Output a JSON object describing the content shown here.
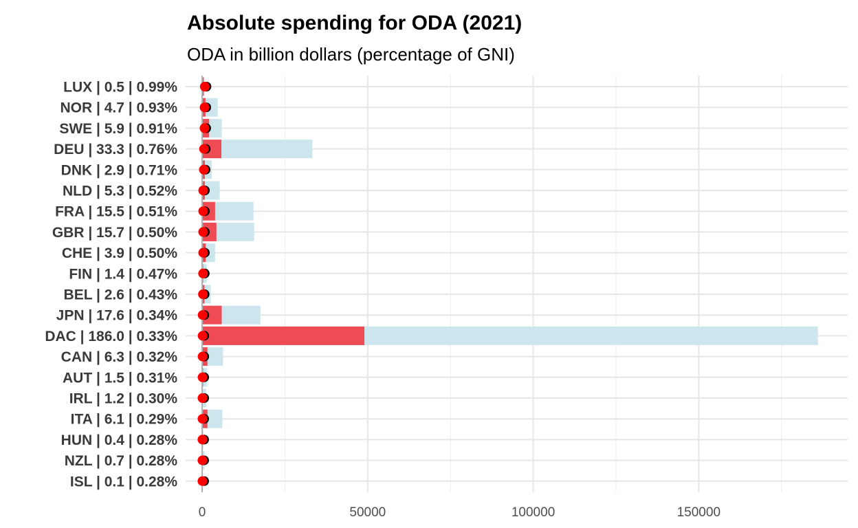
{
  "chart_data": {
    "type": "bar",
    "title": "Absolute spending for ODA (2021)",
    "subtitle": "ODA in billion dollars (percentage of GNI)",
    "xlabel": "",
    "ylabel": "",
    "xlim": [
      -5000,
      195000
    ],
    "x_ticks": [
      0,
      50000,
      100000,
      150000
    ],
    "x_tick_labels": [
      "0",
      "50000",
      "100000",
      "150000"
    ],
    "grid": true,
    "legend": "none",
    "colors": {
      "total_bar": "#cde6ee",
      "highlight_bar": "#ef4b55",
      "point_fill": "#ff0000",
      "point_stroke": "#000000",
      "grid": "#e6e6e6",
      "zero_line": "#b0b0b0"
    },
    "categories": [
      "LUX | 0.5 | 0.99%",
      "NOR | 4.7 | 0.93%",
      "SWE | 5.9 | 0.91%",
      "DEU | 33.3 | 0.76%",
      "DNK | 2.9 | 0.71%",
      "NLD | 5.3 | 0.52%",
      "FRA | 15.5 | 0.51%",
      "GBR | 15.7 | 0.50%",
      "CHE | 3.9 | 0.50%",
      "FIN | 1.4 | 0.47%",
      "BEL | 2.6 | 0.43%",
      "JPN | 17.6 | 0.34%",
      "DAC | 186.0 | 0.33%",
      "CAN | 6.3 | 0.32%",
      "AUT | 1.5 | 0.31%",
      "IRL | 1.2 | 0.30%",
      "ITA | 6.1 | 0.29%",
      "HUN | 0.4 | 0.28%",
      "NZL | 0.7 | 0.28%",
      "ISL | 0.1 | 0.28%"
    ],
    "series": [
      {
        "values": [
          500,
          4700,
          5900,
          33300,
          2900,
          5300,
          15500,
          15700,
          3900,
          1400,
          2600,
          17600,
          186000,
          6300,
          1500,
          1200,
          6100,
          400,
          700,
          100
        ]
      },
      {
        "values": [
          500,
          1000,
          2100,
          5800,
          800,
          800,
          3900,
          4300,
          1100,
          300,
          700,
          5900,
          49000,
          1600,
          300,
          200,
          1600,
          100,
          100,
          0
        ]
      },
      {
        "values": [
          990,
          930,
          910,
          760,
          710,
          520,
          510,
          500,
          500,
          470,
          430,
          340,
          330,
          320,
          310,
          300,
          290,
          280,
          280,
          280
        ]
      }
    ]
  }
}
